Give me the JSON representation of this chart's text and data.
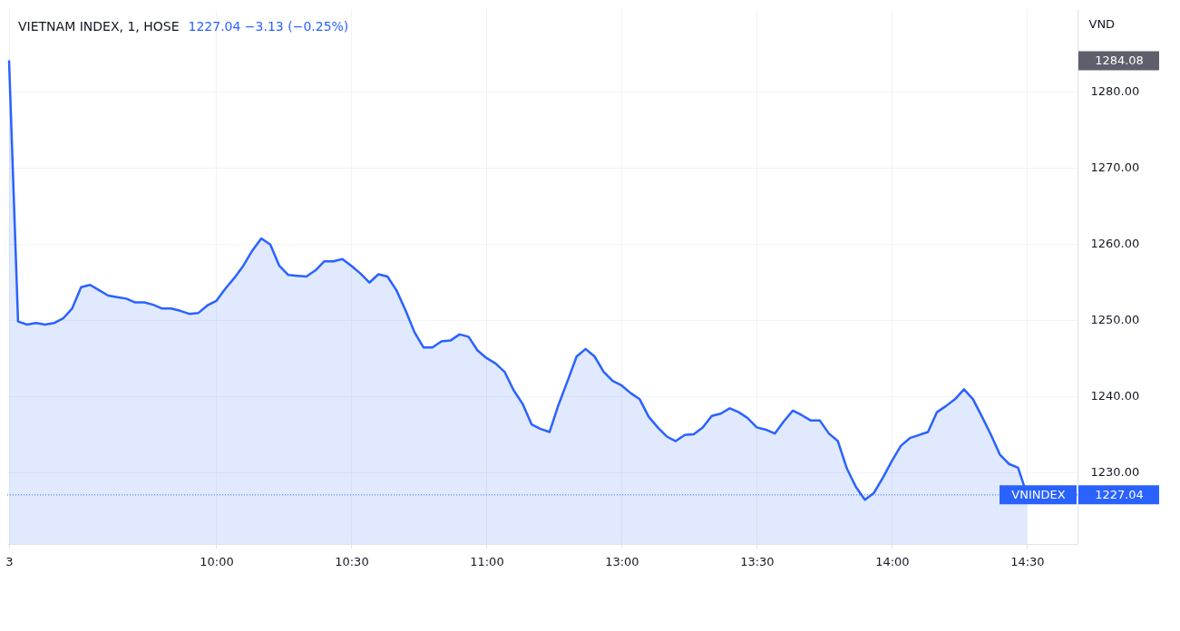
{
  "chart_data": {
    "type": "area",
    "title": "VIETNAM INDEX, 1, HOSE",
    "subtitle": "1227.04  −3.13 (−0.25%)",
    "ylabel": "VND",
    "categories": [
      "3",
      null,
      null,
      null,
      null,
      null,
      null,
      null,
      null,
      null,
      null,
      null,
      null,
      null,
      null,
      null,
      null,
      null,
      null,
      null,
      null,
      null,
      null,
      "10:00",
      null,
      null,
      null,
      null,
      null,
      null,
      null,
      null,
      null,
      null,
      null,
      null,
      null,
      null,
      "10:30",
      null,
      null,
      null,
      null,
      null,
      null,
      null,
      null,
      null,
      null,
      null,
      null,
      null,
      null,
      "11:00",
      null,
      null,
      null,
      null,
      null,
      null,
      null,
      null,
      null,
      null,
      null,
      null,
      null,
      null,
      "13:00",
      null,
      null,
      null,
      null,
      null,
      null,
      null,
      null,
      null,
      null,
      null,
      null,
      null,
      null,
      "13:30",
      null,
      null,
      null,
      null,
      null,
      null,
      null,
      null,
      null,
      null,
      null,
      null,
      null,
      null,
      "14:00",
      null,
      null,
      null,
      null,
      null,
      null,
      null,
      null,
      null,
      null,
      null,
      null,
      null,
      null,
      "14:30"
    ],
    "values": [
      1284.08,
      1249.8,
      1249.4,
      1249.6,
      1249.4,
      1249.6,
      1250.2,
      1251.5,
      1254.3,
      1254.6,
      1253.9,
      1253.2,
      1253.0,
      1252.8,
      1252.3,
      1252.3,
      1252.0,
      1251.5,
      1251.5,
      1251.2,
      1250.8,
      1250.9,
      1251.9,
      1252.5,
      1254.1,
      1255.5,
      1257.1,
      1259.1,
      1260.7,
      1259.9,
      1257.1,
      1255.9,
      1255.8,
      1255.7,
      1256.5,
      1257.7,
      1257.7,
      1258.0,
      1257.1,
      1256.1,
      1254.9,
      1256.0,
      1255.7,
      1253.9,
      1251.3,
      1248.4,
      1246.4,
      1246.4,
      1247.2,
      1247.3,
      1248.1,
      1247.8,
      1246.0,
      1245.0,
      1244.3,
      1243.2,
      1240.8,
      1239.0,
      1236.3,
      1235.7,
      1235.3,
      1238.9,
      1242.0,
      1245.2,
      1246.2,
      1245.2,
      1243.2,
      1242.0,
      1241.4,
      1240.4,
      1239.6,
      1237.3,
      1235.9,
      1234.7,
      1234.1,
      1234.9,
      1235.0,
      1235.9,
      1237.4,
      1237.7,
      1238.4,
      1237.9,
      1237.1,
      1235.9,
      1235.6,
      1235.1,
      1236.7,
      1238.1,
      1237.5,
      1236.8,
      1236.8,
      1235.1,
      1234.1,
      1230.5,
      1228.1,
      1226.4,
      1227.3,
      1229.3,
      1231.5,
      1233.5,
      1234.5,
      1234.9,
      1235.3,
      1237.9,
      1238.7,
      1239.6,
      1240.9,
      1239.6,
      1237.3,
      1234.9,
      1232.3,
      1231.1,
      1230.6,
      1227.04
    ],
    "color": "#2962ff",
    "ylim": [
      1220.6,
      1290.8
    ],
    "yticks": [
      {
        "value": 1230,
        "label": "1230.00"
      },
      {
        "value": 1240,
        "label": "1240.00"
      },
      {
        "value": 1250,
        "label": "1250.00"
      },
      {
        "value": 1260,
        "label": "1260.00"
      },
      {
        "value": 1270,
        "label": "1270.00"
      },
      {
        "value": 1280,
        "label": "1280.00"
      }
    ],
    "ref_lines": [
      {
        "axis": "y",
        "value": 1227.04,
        "label": "VNINDEX",
        "color": "#2962ff",
        "line_style": "dotted"
      }
    ],
    "annotations": [
      "1284.08",
      "1227.04"
    ],
    "grid": true
  }
}
